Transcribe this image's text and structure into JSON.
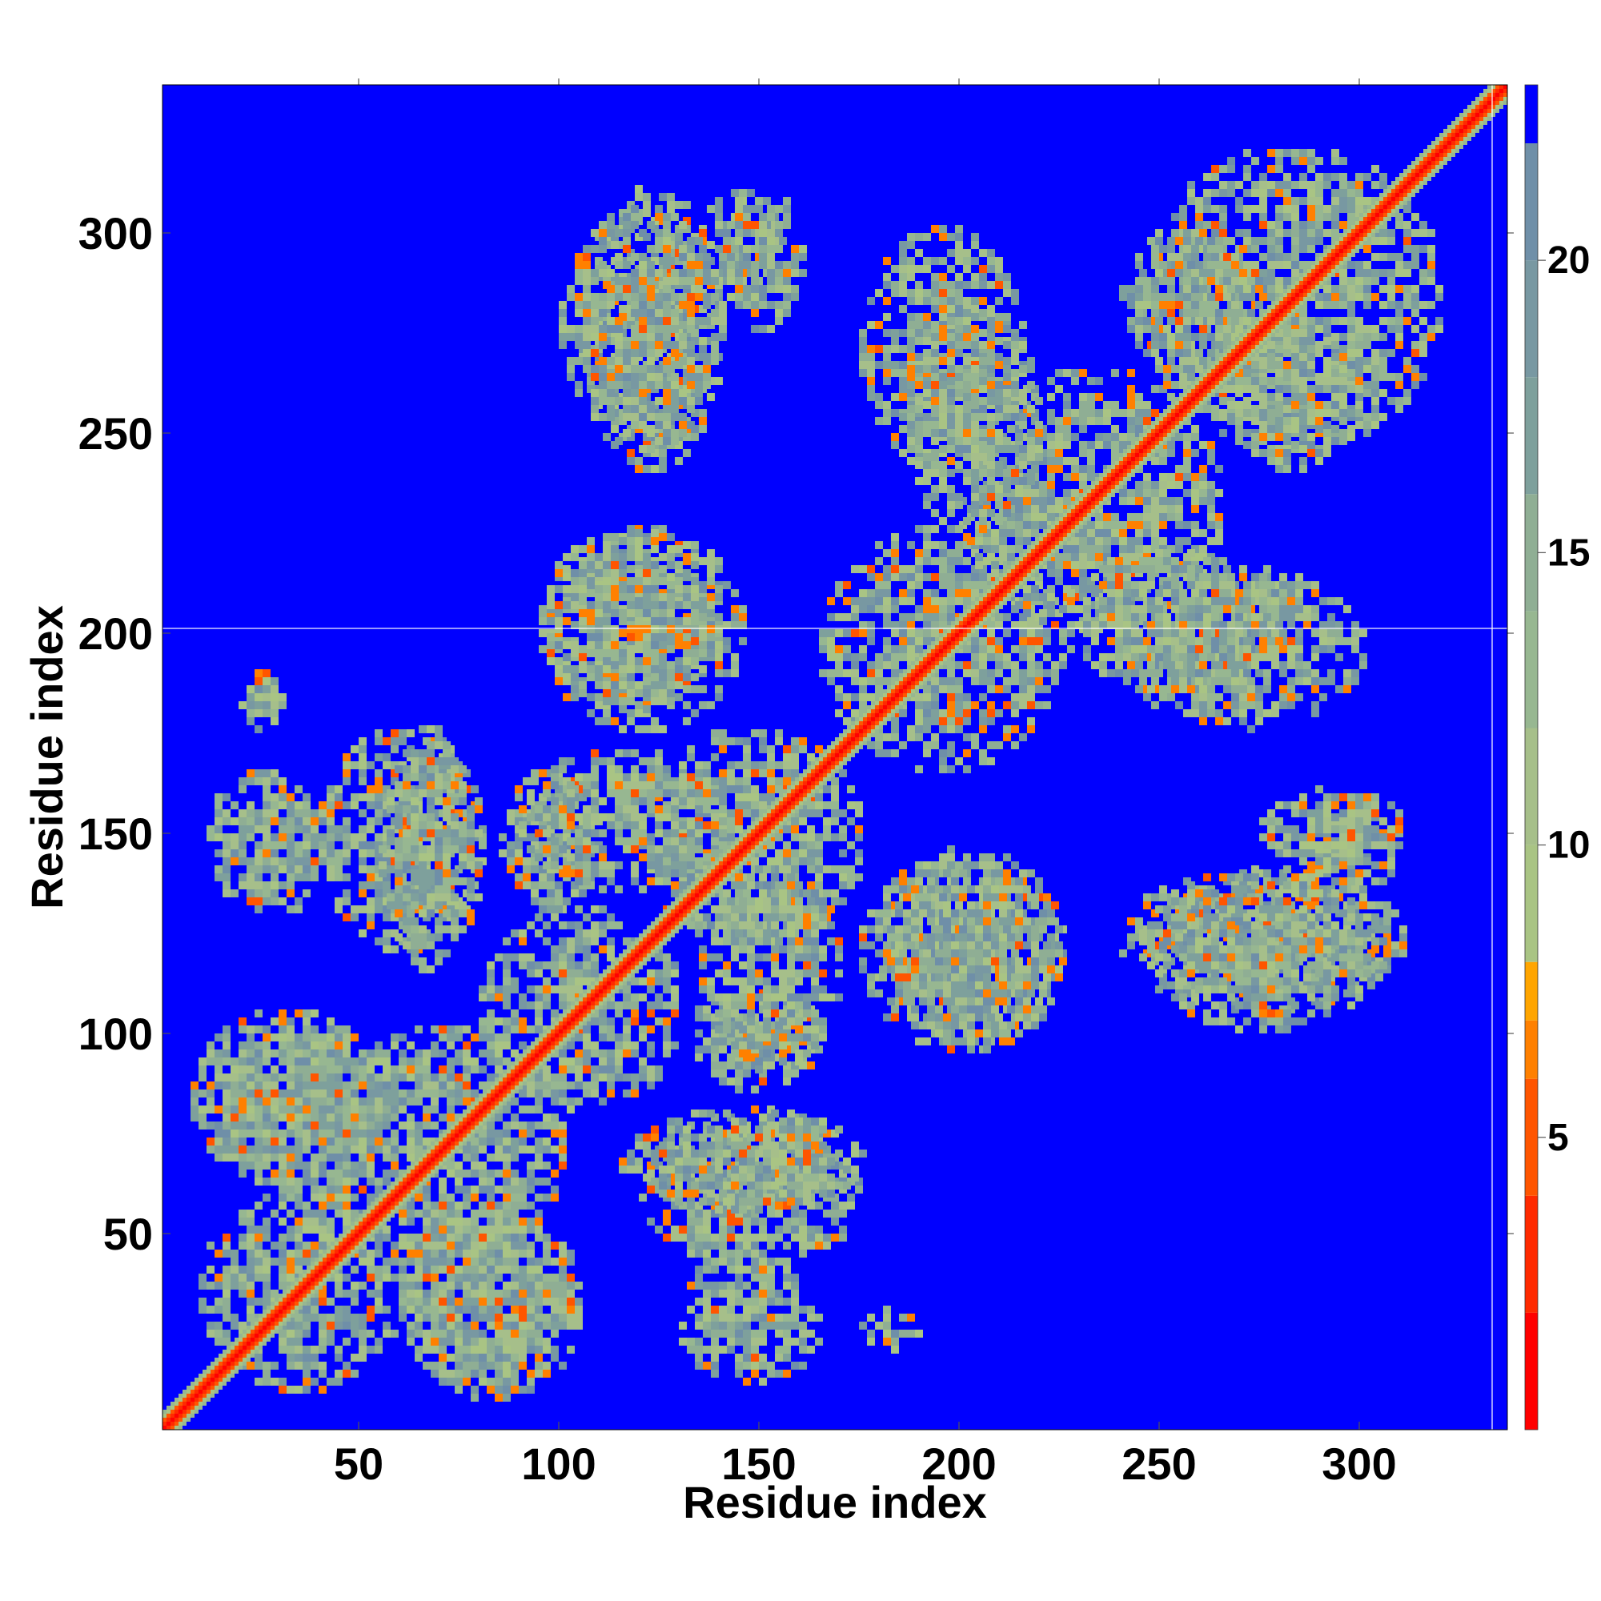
{
  "chart_data": {
    "type": "heatmap",
    "title": "",
    "xlabel": "Residue index",
    "ylabel": "Residue index",
    "xlim": [
      1,
      337
    ],
    "ylim": [
      1,
      337
    ],
    "x_ticks": [
      50,
      100,
      150,
      200,
      250,
      300
    ],
    "y_ticks": [
      50,
      100,
      150,
      200,
      250,
      300
    ],
    "x_tick_labels": [
      "50",
      "100",
      "150",
      "200",
      "250",
      "300"
    ],
    "y_tick_labels": [
      "50",
      "100",
      "150",
      "200",
      "250",
      "300"
    ],
    "n_residues": 337,
    "colorbar": {
      "range": [
        0,
        23
      ],
      "ticks": [
        5,
        10,
        15,
        20
      ],
      "tick_labels": [
        "5",
        "10",
        "15",
        "20"
      ],
      "bands": [
        {
          "from": 0,
          "to": 2,
          "color": "#ff0000"
        },
        {
          "from": 2,
          "to": 4,
          "color": "#ff2a00"
        },
        {
          "from": 4,
          "to": 6,
          "color": "#ff5500"
        },
        {
          "from": 6,
          "to": 7,
          "color": "#ff8000"
        },
        {
          "from": 7,
          "to": 8,
          "color": "#ffa500"
        },
        {
          "from": 8,
          "to": 10,
          "color": "#a9c484"
        },
        {
          "from": 10,
          "to": 12,
          "color": "#a6bf8a"
        },
        {
          "from": 12,
          "to": 14,
          "color": "#97b791"
        },
        {
          "from": 14,
          "to": 16,
          "color": "#8fae94"
        },
        {
          "from": 16,
          "to": 18,
          "color": "#7ea09c"
        },
        {
          "from": 18,
          "to": 20,
          "color": "#7898a2"
        },
        {
          "from": 20,
          "to": 22,
          "color": "#6f8fa8"
        },
        {
          "from": 22,
          "to": 23,
          "color": "#0000ff"
        }
      ]
    },
    "background_color": "#0000ff",
    "diagonal_color": "#ff2000",
    "contact_regions": [
      {
        "x": [
          10,
          60
        ],
        "y": [
          10,
          60
        ]
      },
      {
        "x": [
          40,
          100
        ],
        "y": [
          40,
          100
        ]
      },
      {
        "x": [
          80,
          130
        ],
        "y": [
          80,
          130
        ]
      },
      {
        "x": [
          120,
          175
        ],
        "y": [
          120,
          175
        ]
      },
      {
        "x": [
          165,
          225
        ],
        "y": [
          165,
          225
        ]
      },
      {
        "x": [
          200,
          265
        ],
        "y": [
          200,
          265
        ]
      },
      {
        "x": [
          245,
          320
        ],
        "y": [
          245,
          320
        ]
      },
      {
        "x": [
          8,
          55
        ],
        "y": [
          60,
          105
        ]
      },
      {
        "x": [
          60,
          100
        ],
        "y": [
          10,
          60
        ]
      },
      {
        "x": [
          12,
          35
        ],
        "y": [
          130,
          165
        ]
      },
      {
        "x": [
          40,
          80
        ],
        "y": [
          120,
          175
        ]
      },
      {
        "x": [
          85,
          110
        ],
        "y": [
          130,
          165
        ]
      },
      {
        "x": [
          95,
          145
        ],
        "y": [
          175,
          225
        ]
      },
      {
        "x": [
          105,
          140
        ],
        "y": [
          240,
          310
        ]
      },
      {
        "x": [
          135,
          155
        ],
        "y": [
          285,
          310
        ]
      },
      {
        "x": [
          115,
          175
        ],
        "y": [
          55,
          80
        ]
      },
      {
        "x": [
          130,
          160
        ],
        "y": [
          20,
          45
        ]
      },
      {
        "x": [
          135,
          170
        ],
        "y": [
          90,
          140
        ]
      },
      {
        "x": [
          180,
          225
        ],
        "y": [
          95,
          140
        ]
      },
      {
        "x": [
          175,
          215
        ],
        "y": [
          240,
          300
        ]
      },
      {
        "x": [
          245,
          305
        ],
        "y": [
          100,
          140
        ]
      },
      {
        "x": [
          275,
          310
        ],
        "y": [
          140,
          160
        ]
      },
      {
        "x": [
          225,
          280
        ],
        "y": [
          185,
          220
        ]
      },
      {
        "x": [
          265,
          300
        ],
        "y": [
          240,
          275
        ]
      },
      {
        "x": [
          20,
          30
        ],
        "y": [
          175,
          190
        ]
      }
    ]
  }
}
